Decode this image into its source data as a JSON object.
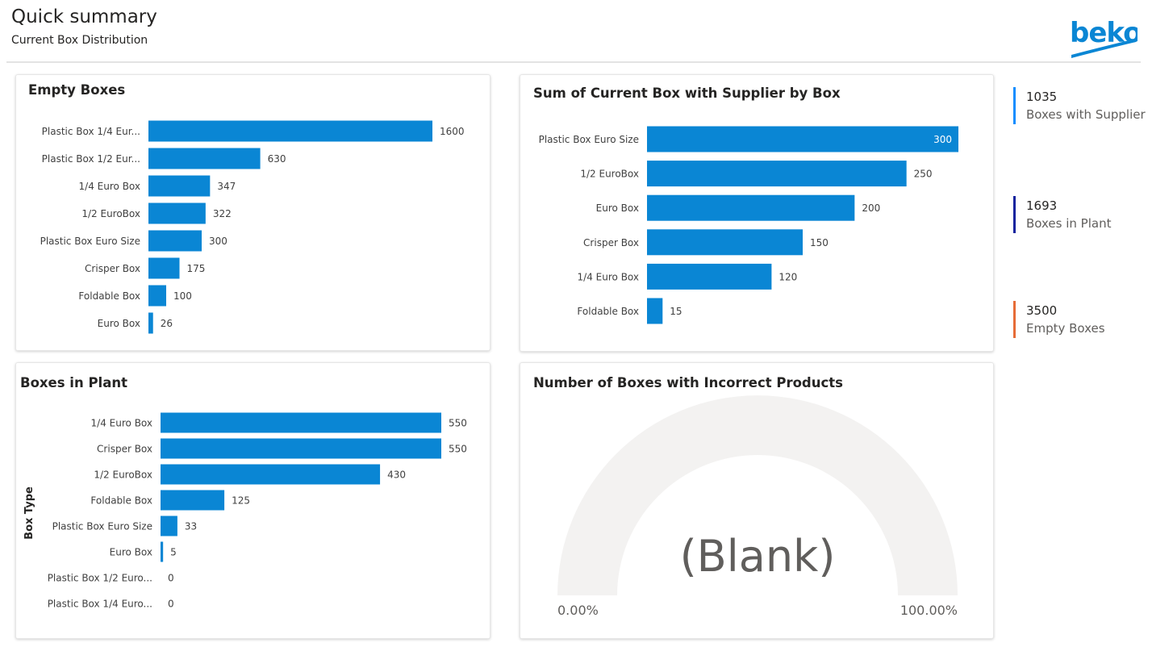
{
  "header": {
    "title": "Quick summary",
    "subtitle": "Current Box Distribution",
    "logo_text": "beko"
  },
  "colors": {
    "bar": "#0a86d4",
    "kpi_supplier": "#118dff",
    "kpi_plant": "#12239e",
    "kpi_empty": "#e66c37",
    "gauge_track": "#f3f2f1"
  },
  "kpis": [
    {
      "value": "1035",
      "label": "Boxes with Supplier",
      "color": "#118dff"
    },
    {
      "value": "1693",
      "label": "Boxes in Plant",
      "color": "#12239e"
    },
    {
      "value": "3500",
      "label": "Empty Boxes",
      "color": "#e66c37"
    }
  ],
  "chart_data": [
    {
      "id": "empty",
      "type": "bar",
      "orientation": "horizontal",
      "title": "Empty Boxes",
      "categories": [
        "Plastic Box 1/4 Eur...",
        "Plastic Box 1/2 Eur...",
        "1/4 Euro Box",
        "1/2 EuroBox",
        "Plastic Box Euro Size",
        "Crisper Box",
        "Foldable Box",
        "Euro Box"
      ],
      "values": [
        1600,
        630,
        347,
        322,
        300,
        175,
        100,
        26
      ],
      "data_labels": [
        "1600",
        "630",
        "347",
        "322",
        "300",
        "175",
        "100",
        "26"
      ],
      "xlim": [
        0,
        1600
      ],
      "grid": false
    },
    {
      "id": "supplier",
      "type": "bar",
      "orientation": "horizontal",
      "title": "Sum of Current Box with Supplier by Box",
      "categories": [
        "Plastic Box Euro Size",
        "1/2 EuroBox",
        "Euro Box",
        "Crisper Box",
        "1/4 Euro Box",
        "Foldable Box"
      ],
      "values": [
        300,
        250,
        200,
        150,
        120,
        15
      ],
      "data_labels": [
        "300",
        "250",
        "200",
        "150",
        "120",
        "15"
      ],
      "xlim": [
        0,
        300
      ],
      "grid": false
    },
    {
      "id": "plant",
      "type": "bar",
      "orientation": "horizontal",
      "title": "Boxes in Plant",
      "ylabel": "Box Type",
      "categories": [
        "1/4 Euro Box",
        "Crisper Box",
        "1/2 EuroBox",
        "Foldable Box",
        "Plastic Box Euro Size",
        "Euro Box",
        "Plastic Box 1/2 Euro...",
        "Plastic Box 1/4 Euro..."
      ],
      "values": [
        550,
        550,
        430,
        125,
        33,
        5,
        0,
        0
      ],
      "data_labels": [
        "550",
        "550",
        "430",
        "125",
        "33",
        "5",
        "0",
        "0"
      ],
      "xlim": [
        0,
        550
      ],
      "grid": false
    }
  ],
  "gauge": {
    "title": "Number of Boxes with Incorrect Products",
    "value_text": "(Blank)",
    "min_label": "0.00%",
    "max_label": "100.00%"
  }
}
